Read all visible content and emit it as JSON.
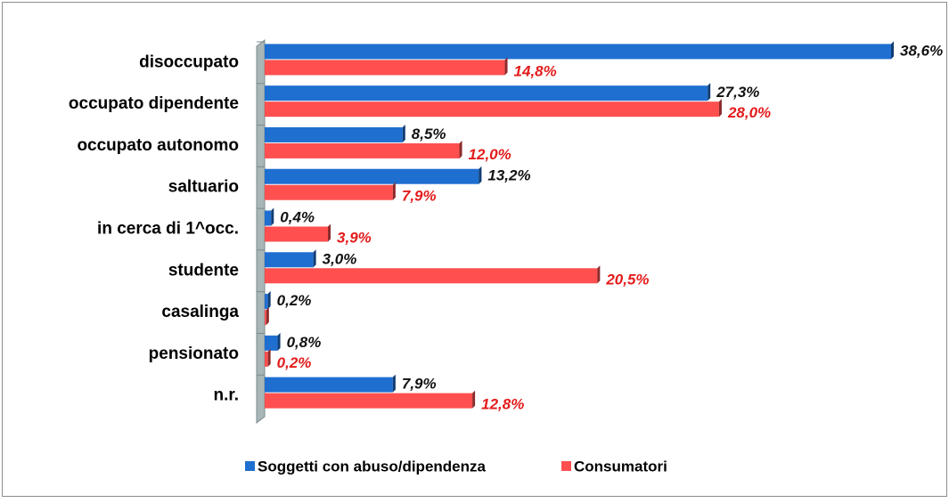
{
  "chart_data": {
    "type": "bar",
    "orientation": "horizontal",
    "categories": [
      "disoccupato",
      "occupato dipendente",
      "occupato autonomo",
      "saltuario",
      "in cerca di 1^occ.",
      "studente",
      "casalinga",
      "pensionato",
      "n.r."
    ],
    "series": [
      {
        "name": "Soggetti con abuso/dipendenza",
        "color": "#1f6fd1",
        "values": [
          38.6,
          27.3,
          8.5,
          13.2,
          0.4,
          3.0,
          0.2,
          0.8,
          7.9
        ],
        "value_labels": [
          "38,6%",
          "27,3%",
          "8,5%",
          "13,2%",
          "0,4%",
          "3,0%",
          "0,2%",
          "0,8%",
          "7,9%"
        ]
      },
      {
        "name": "Consumatori",
        "color": "#ff4f4f",
        "values": [
          14.8,
          28.0,
          12.0,
          7.9,
          3.9,
          20.5,
          0.1,
          0.2,
          12.8
        ],
        "value_labels": [
          "14,8%",
          "28,0%",
          "12,0%",
          "7,9%",
          "3,9%",
          "20,5%",
          null,
          "0,2%",
          "12,8%"
        ]
      }
    ],
    "legend": "bottom"
  }
}
